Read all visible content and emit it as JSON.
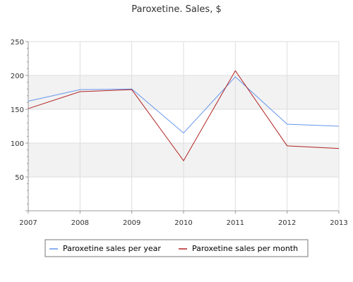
{
  "chart_data": {
    "type": "line",
    "title": "Paroxetine. Sales, $",
    "xlabel": "",
    "ylabel": "",
    "x": [
      "2007",
      "2008",
      "2009",
      "2010",
      "2011",
      "2012",
      "2013"
    ],
    "ylim": [
      0,
      250
    ],
    "yticks": [
      "50",
      "100",
      "150",
      "200",
      "250"
    ],
    "grid": true,
    "legend_position": "bottom",
    "series": [
      {
        "name": "Paroxetine sales per year",
        "color": "#6495ed",
        "values": [
          162,
          179,
          180,
          115,
          198,
          128,
          125
        ]
      },
      {
        "name": "Paroxetine sales per month",
        "color": "#b22222",
        "values": [
          151,
          176,
          179,
          74,
          207,
          96,
          92
        ]
      }
    ]
  },
  "colors": {
    "band_fill": "#f2f2f2",
    "grid_line": "#dddddd",
    "axis_line": "#999999"
  }
}
